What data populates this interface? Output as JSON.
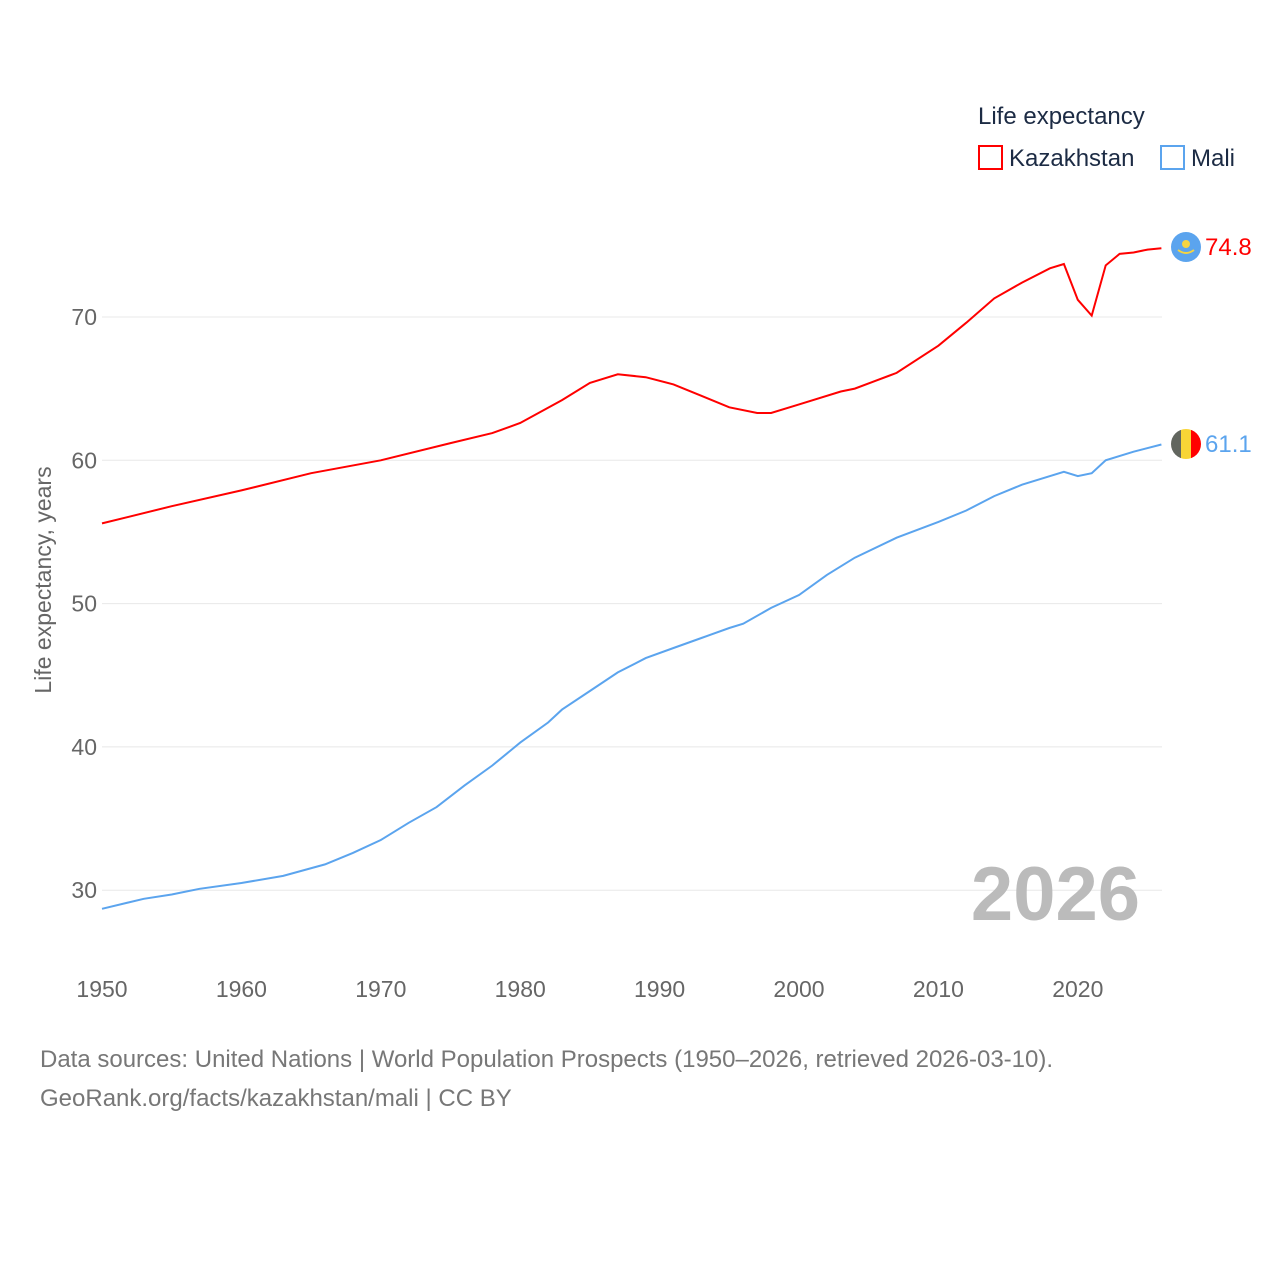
{
  "chart_data": {
    "type": "line",
    "title": "",
    "xlabel": "",
    "ylabel": "Life expectancy, years",
    "xlim": [
      1950,
      2026
    ],
    "ylim": [
      25.5,
      77
    ],
    "yticks": [
      30,
      40,
      50,
      60,
      70
    ],
    "xticks": [
      1950,
      1960,
      1970,
      1980,
      1990,
      2000,
      2010,
      2020
    ],
    "grid": true,
    "legend": {
      "title": "Life expectancy",
      "placement": "top-right"
    },
    "year_label": "2026",
    "series": [
      {
        "name": "Kazakhstan",
        "color": "#ff0000",
        "end_label": "74.8",
        "flag": "kazakhstan-flag",
        "x": [
          1950,
          1955,
          1960,
          1965,
          1970,
          1975,
          1978,
          1980,
          1983,
          1985,
          1987,
          1989,
          1991,
          1993,
          1995,
          1997,
          1998,
          2000,
          2003,
          2004,
          2007,
          2010,
          2012,
          2014,
          2016,
          2018,
          2019,
          2020,
          2021,
          2022,
          2023,
          2024,
          2025,
          2026
        ],
        "y": [
          55.6,
          56.8,
          57.9,
          59.1,
          60.0,
          61.2,
          61.9,
          62.6,
          64.2,
          65.4,
          66.0,
          65.8,
          65.3,
          64.5,
          63.7,
          63.3,
          63.3,
          63.9,
          64.8,
          65.0,
          66.1,
          68.0,
          69.6,
          71.3,
          72.4,
          73.4,
          73.7,
          71.2,
          70.1,
          73.6,
          74.4,
          74.5,
          74.7,
          74.8
        ]
      },
      {
        "name": "Mali",
        "color": "#5ba4ee",
        "end_label": "61.1",
        "flag": "mali-flag",
        "x": [
          1950,
          1953,
          1955,
          1957,
          1960,
          1963,
          1966,
          1968,
          1970,
          1972,
          1974,
          1976,
          1978,
          1980,
          1982,
          1983,
          1985,
          1987,
          1989,
          1991,
          1993,
          1995,
          1996,
          1998,
          2000,
          2002,
          2004,
          2007,
          2010,
          2012,
          2014,
          2016,
          2019,
          2020,
          2021,
          2022,
          2024,
          2026
        ],
        "y": [
          28.7,
          29.4,
          29.7,
          30.1,
          30.5,
          31.0,
          31.8,
          32.6,
          33.5,
          34.7,
          35.8,
          37.3,
          38.7,
          40.3,
          41.7,
          42.6,
          43.9,
          45.2,
          46.2,
          46.9,
          47.6,
          48.3,
          48.6,
          49.7,
          50.6,
          52.0,
          53.2,
          54.6,
          55.7,
          56.5,
          57.5,
          58.3,
          59.2,
          58.9,
          59.1,
          60.0,
          60.6,
          61.1
        ]
      }
    ]
  },
  "footer": {
    "line1": "Data sources: United Nations | World Population Prospects (1950–2026, retrieved 2026-03-10).",
    "line2": "GeoRank.org/facts/kazakhstan/mali | CC BY"
  }
}
